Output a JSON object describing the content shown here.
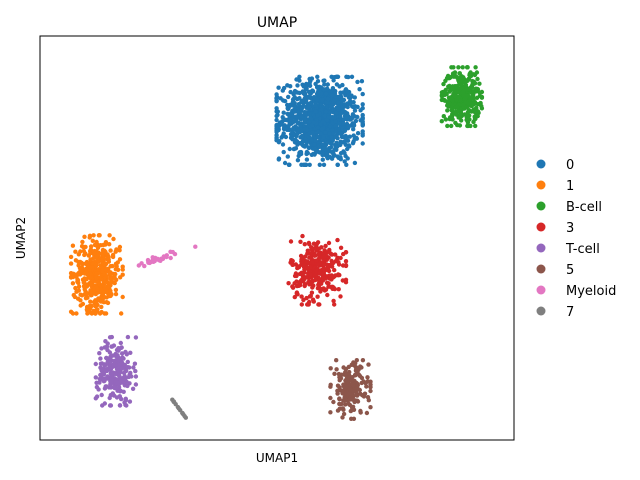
{
  "chart_data": {
    "type": "scatter",
    "title": "UMAP",
    "xlabel": "UMAP1",
    "ylabel": "UMAP2",
    "xlim": [
      0,
      100
    ],
    "ylim": [
      0,
      100
    ],
    "grid": false,
    "ticks_shown": false,
    "legend_position": "right",
    "series": [
      {
        "name": "0",
        "color": "#1f77b4",
        "center": [
          59.0,
          79.0
        ],
        "spread": [
          7.5,
          9.0
        ],
        "count": 1050
      },
      {
        "name": "1",
        "color": "#ff7f0e",
        "center": [
          12.0,
          41.0
        ],
        "spread": [
          4.5,
          8.0
        ],
        "count": 420
      },
      {
        "name": "B-cell",
        "color": "#2ca02c",
        "center": [
          89.0,
          85.0
        ],
        "spread": [
          3.5,
          6.0
        ],
        "count": 340
      },
      {
        "name": "3",
        "color": "#d62728",
        "center": [
          58.5,
          42.0
        ],
        "spread": [
          5.0,
          7.0
        ],
        "count": 300
      },
      {
        "name": "T-cell",
        "color": "#9467bd",
        "center": [
          16.0,
          17.0
        ],
        "spread": [
          3.5,
          7.0
        ],
        "count": 220
      },
      {
        "name": "5",
        "color": "#8c564b",
        "center": [
          65.5,
          12.5
        ],
        "spread": [
          3.5,
          6.0
        ],
        "count": 190
      },
      {
        "name": "Myeloid",
        "color": "#e377c2",
        "center": [
          25.5,
          45.0
        ],
        "spread": [
          6.0,
          2.5
        ],
        "count": 30
      },
      {
        "name": "7",
        "color": "#7f7f7f",
        "center": [
          29.5,
          7.5
        ],
        "spread": [
          2.0,
          2.0
        ],
        "count": 14
      }
    ]
  }
}
